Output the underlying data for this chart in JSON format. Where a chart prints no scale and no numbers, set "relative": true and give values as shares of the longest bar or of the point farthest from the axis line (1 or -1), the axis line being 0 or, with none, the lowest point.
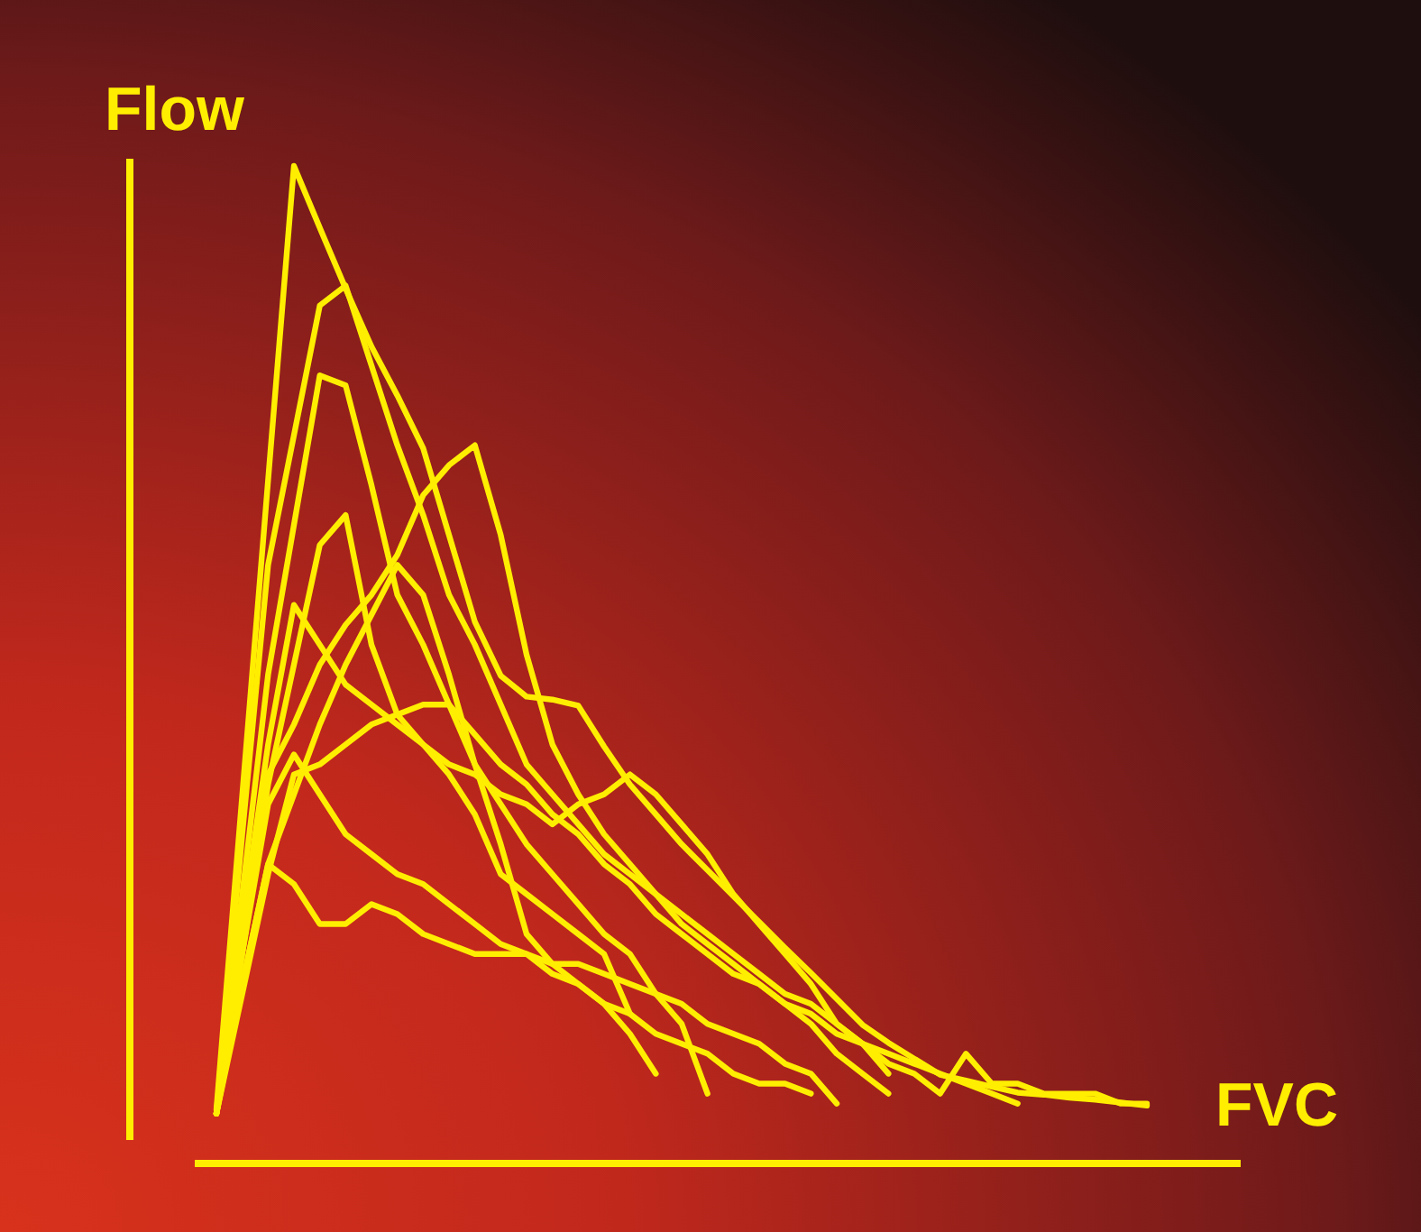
{
  "chart_data": {
    "type": "line",
    "relative": true,
    "xlabel": "FVC",
    "ylabel": "Flow",
    "line_style": "solid",
    "categories": [
      null,
      null,
      null,
      null,
      null,
      null,
      null,
      null,
      null,
      null,
      null,
      null,
      null,
      null,
      null,
      null,
      null,
      null,
      null,
      null,
      null,
      null,
      null,
      null,
      null,
      null,
      null,
      null,
      null,
      null,
      null,
      null,
      null,
      null,
      null,
      null,
      null
    ],
    "series": [
      {
        "color": "#ffee00",
        "values": [
          0.054,
          0.369,
          0.685,
          1,
          0.938,
          0.877,
          0.819,
          0.77,
          0.717,
          0.63,
          0.543,
          0.489,
          0.468,
          0.465,
          0.459,
          0.418,
          0.38,
          0.35,
          0.32,
          0.294,
          0.268,
          0.242,
          0.216,
          0.191,
          0.165,
          0.139,
          0.121,
          0.105,
          0.089,
          0.083,
          0.077,
          0.071,
          0.069,
          0.066,
          0.064,
          0.061,
          0.058
        ]
      },
      {
        "color": "#ffee00",
        "values": [
          0.05,
          0.33,
          0.6,
          0.73,
          0.86,
          0.88,
          0.8,
          0.72,
          0.65,
          0.57,
          0.52,
          0.46,
          0.4,
          0.37,
          0.34,
          0.31,
          0.29,
          0.27,
          0.25,
          0.23,
          0.21,
          0.19,
          0.17,
          0.16,
          0.14,
          0.12,
          0.09,
          null,
          null,
          null,
          null,
          null,
          null,
          null,
          null,
          null,
          null
        ]
      },
      {
        "color": "#ffee00",
        "values": [
          0.05,
          0.27,
          0.49,
          0.64,
          0.79,
          0.78,
          0.68,
          0.57,
          0.52,
          0.46,
          0.4,
          0.36,
          0.32,
          0.29,
          0.26,
          0.23,
          0.21,
          0.17,
          0.14,
          0.07,
          null,
          null,
          null,
          null,
          null,
          null,
          null,
          null,
          null,
          null,
          null,
          null,
          null,
          null,
          null,
          null,
          null
        ]
      },
      {
        "color": "#ffee00",
        "values": [
          0.05,
          0.22,
          0.39,
          0.44,
          0.5,
          0.54,
          0.57,
          0.61,
          0.67,
          0.7,
          0.72,
          0.63,
          0.51,
          0.42,
          0.37,
          0.33,
          0.3,
          0.27,
          0.24,
          0.22,
          0.2,
          0.18,
          0.16,
          0.14,
          0.11,
          0.09,
          0.07,
          null,
          null,
          null,
          null,
          null,
          null,
          null,
          null,
          null,
          null
        ]
      },
      {
        "color": "#ffee00",
        "values": [
          0.05,
          0.21,
          0.38,
          0.5,
          0.62,
          0.65,
          0.52,
          0.45,
          0.42,
          0.39,
          0.35,
          0.29,
          0.27,
          0.25,
          0.23,
          0.21,
          0.15,
          null,
          null,
          null,
          null,
          null,
          null,
          null,
          null,
          null,
          null,
          null,
          null,
          null,
          null,
          null,
          null,
          null,
          null,
          null,
          null
        ]
      },
      {
        "color": "#ffee00",
        "values": [
          0.05,
          0.18,
          0.3,
          0.37,
          0.44,
          0.5,
          0.55,
          0.6,
          0.57,
          0.49,
          0.4,
          0.32,
          0.23,
          0.2,
          0.18,
          0.16,
          0.13,
          0.09,
          null,
          null,
          null,
          null,
          null,
          null,
          null,
          null,
          null,
          null,
          null,
          null,
          null,
          null,
          null,
          null,
          null,
          null,
          null
        ]
      },
      {
        "color": "#ffee00",
        "values": [
          0.05,
          0.21,
          0.36,
          0.41,
          0.37,
          0.33,
          0.31,
          0.29,
          0.28,
          0.26,
          0.24,
          0.22,
          0.21,
          0.19,
          0.18,
          0.16,
          0.15,
          0.13,
          0.12,
          0.11,
          0.09,
          0.08,
          0.08,
          0.07,
          null,
          null,
          null,
          null,
          null,
          null,
          null,
          null,
          null,
          null,
          null,
          null,
          null
        ]
      },
      {
        "color": "#ffee00",
        "values": [
          0.05,
          0.18,
          0.3,
          0.28,
          0.24,
          0.24,
          0.26,
          0.25,
          0.23,
          0.22,
          0.21,
          0.21,
          0.21,
          0.2,
          0.2,
          0.19,
          0.18,
          0.17,
          0.16,
          0.14,
          0.13,
          0.12,
          0.1,
          0.09,
          0.06,
          null,
          null,
          null,
          null,
          null,
          null,
          null,
          null,
          null,
          null,
          null,
          null
        ]
      },
      {
        "color": "#ffee00",
        "values": [
          0.05,
          0.24,
          0.42,
          0.56,
          0.52,
          0.48,
          0.46,
          0.44,
          0.42,
          0.4,
          0.39,
          0.37,
          0.36,
          0.34,
          0.36,
          0.37,
          0.39,
          0.37,
          0.34,
          0.31,
          0.27,
          0.24,
          0.21,
          0.18,
          0.14,
          0.12,
          0.1,
          0.09,
          0.07,
          0.11,
          0.08,
          0.08,
          0.07,
          0.07,
          0.07,
          0.06,
          0.06
        ]
      },
      {
        "color": "#ffee00",
        "values": [
          0.05,
          0.17,
          0.29,
          0.39,
          0.4,
          0.42,
          0.44,
          0.45,
          0.46,
          0.46,
          0.43,
          0.4,
          0.38,
          0.35,
          0.33,
          0.3,
          0.28,
          0.25,
          0.23,
          0.21,
          0.19,
          0.18,
          0.16,
          0.15,
          0.13,
          0.12,
          0.11,
          0.1,
          0.09,
          0.08,
          0.07,
          0.06,
          null,
          null,
          null,
          null,
          null
        ]
      }
    ]
  }
}
